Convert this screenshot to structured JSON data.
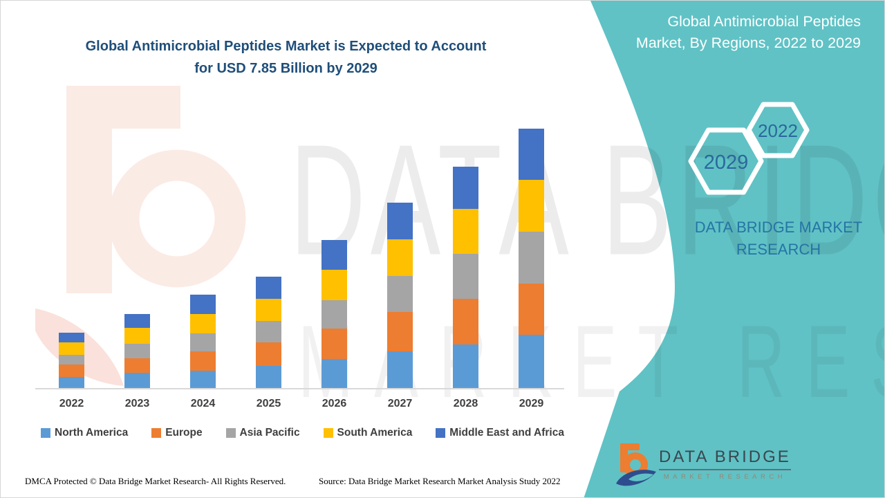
{
  "chart_title": {
    "line1": "Global Antimicrobial Peptides Market is Expected to Account",
    "line2": "for USD 7.85 Billion by 2029"
  },
  "panel": {
    "title": "Global Antimicrobial Peptides Market, By Regions, 2022 to 2029",
    "hexagon_front": "2022",
    "hexagon_back": "2029",
    "brand_line1": "DATA BRIDGE MARKET",
    "brand_line2": "RESEARCH"
  },
  "logo": {
    "name": "DATA BRIDGE",
    "subtitle": "MARKET RESEARCH"
  },
  "watermark": {
    "row1": "DATA BRIDGE",
    "row2": "MARKET RESEARCH"
  },
  "footer": {
    "left": "DMCA Protected © Data Bridge Market Research- All Rights Reserved.",
    "right": "Source: Data Bridge Market Research Market Analysis Study 2022"
  },
  "colors": {
    "teal_panel": "#60c2c5",
    "title_navy": "#1f4e79",
    "axis_gray": "#d9d9d9",
    "label_gray": "#3f3f3f",
    "hex_number_blue": "#2b689c",
    "brand_blue": "#2674a4",
    "logo_orange": "#ed7d31",
    "logo_navy": "#2e4d8e"
  },
  "chart_data": {
    "type": "bar",
    "stacked": true,
    "unit": "USD Billion",
    "title": "Global Antimicrobial Peptides Market, By Regions, 2022 to 2029",
    "note_total_2029": 7.85,
    "categories": [
      "2022",
      "2023",
      "2024",
      "2025",
      "2026",
      "2027",
      "2028",
      "2029"
    ],
    "series": [
      {
        "name": "North America",
        "color": "#5b9bd5",
        "values": [
          0.33,
          0.46,
          0.52,
          0.67,
          0.88,
          1.11,
          1.32,
          1.61
        ]
      },
      {
        "name": "Europe",
        "color": "#ed7d31",
        "values": [
          0.38,
          0.44,
          0.59,
          0.71,
          0.92,
          1.19,
          1.38,
          1.55
        ]
      },
      {
        "name": "Asia Pacific",
        "color": "#a5a5a5",
        "values": [
          0.29,
          0.44,
          0.54,
          0.65,
          0.86,
          1.09,
          1.36,
          1.57
        ]
      },
      {
        "name": "South America",
        "color": "#ffc000",
        "values": [
          0.38,
          0.48,
          0.59,
          0.67,
          0.92,
          1.11,
          1.36,
          1.57
        ]
      },
      {
        "name": "Middle East and Africa",
        "color": "#4472c4",
        "values": [
          0.29,
          0.42,
          0.59,
          0.67,
          0.9,
          1.11,
          1.28,
          1.55
        ]
      }
    ],
    "totals_estimated": [
      1.67,
      2.24,
      2.83,
      3.37,
      4.48,
      5.61,
      6.7,
      7.85
    ],
    "ylim": [
      0,
      8
    ],
    "y_axis_visible": false,
    "legend_position": "bottom"
  }
}
